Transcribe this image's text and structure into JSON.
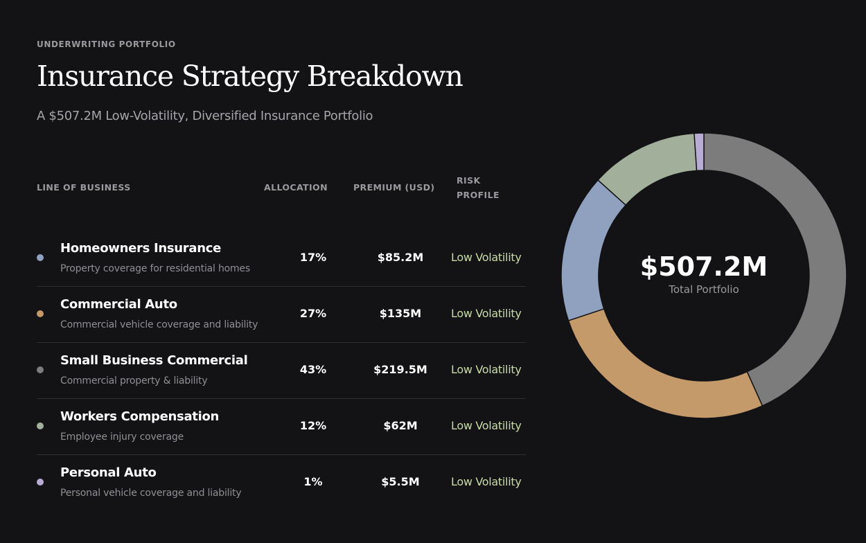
{
  "header": {
    "eyebrow": "UNDERWRITING PORTFOLIO",
    "title": "Insurance Strategy Breakdown",
    "subtitle": "A $507.2M Low-Volatility, Diversified Insurance Portfolio"
  },
  "table": {
    "columns": [
      "LINE OF BUSINESS",
      "ALLOCATION",
      "PREMIUM (USD)",
      "RISK PROFILE"
    ],
    "rows": [
      {
        "name": "Homeowners Insurance",
        "description": "Property coverage for residential homes",
        "allocation": "17%",
        "premium": "$85.2M",
        "risk": "Low Volatility",
        "color": "#8fa1bf"
      },
      {
        "name": "Commercial Auto",
        "description": "Commercial vehicle coverage and liability",
        "allocation": "27%",
        "premium": "$135M",
        "risk": "Low Volatility",
        "color": "#c49a6a"
      },
      {
        "name": "Small Business Commercial",
        "description": "Commercial property & liability",
        "allocation": "43%",
        "premium": "$219.5M",
        "risk": "Low Volatility",
        "color": "#7c7c7c"
      },
      {
        "name": "Workers Compensation",
        "description": "Employee injury coverage",
        "allocation": "12%",
        "premium": "$62M",
        "risk": "Low Volatility",
        "color": "#a2b09b"
      },
      {
        "name": "Personal Auto",
        "description": "Personal vehicle coverage and liability",
        "allocation": "1%",
        "premium": "$5.5M",
        "risk": "Low Volatility",
        "color": "#b8acd2"
      }
    ]
  },
  "donut": {
    "center_value": "$507.2M",
    "center_label": "Total Portfolio"
  },
  "chart_data": {
    "type": "pie",
    "categories": [
      "Small Business Commercial",
      "Commercial Auto",
      "Homeowners Insurance",
      "Workers Compensation",
      "Personal Auto"
    ],
    "values": [
      219.5,
      135,
      85.2,
      62,
      5.5
    ],
    "colors": [
      "#7c7c7c",
      "#c49a6a",
      "#8fa1bf",
      "#a2b09b",
      "#b8acd2"
    ],
    "unit": "$M",
    "total": "$507.2M",
    "center_label": "Total Portfolio",
    "style": "donut",
    "legend": "none"
  }
}
